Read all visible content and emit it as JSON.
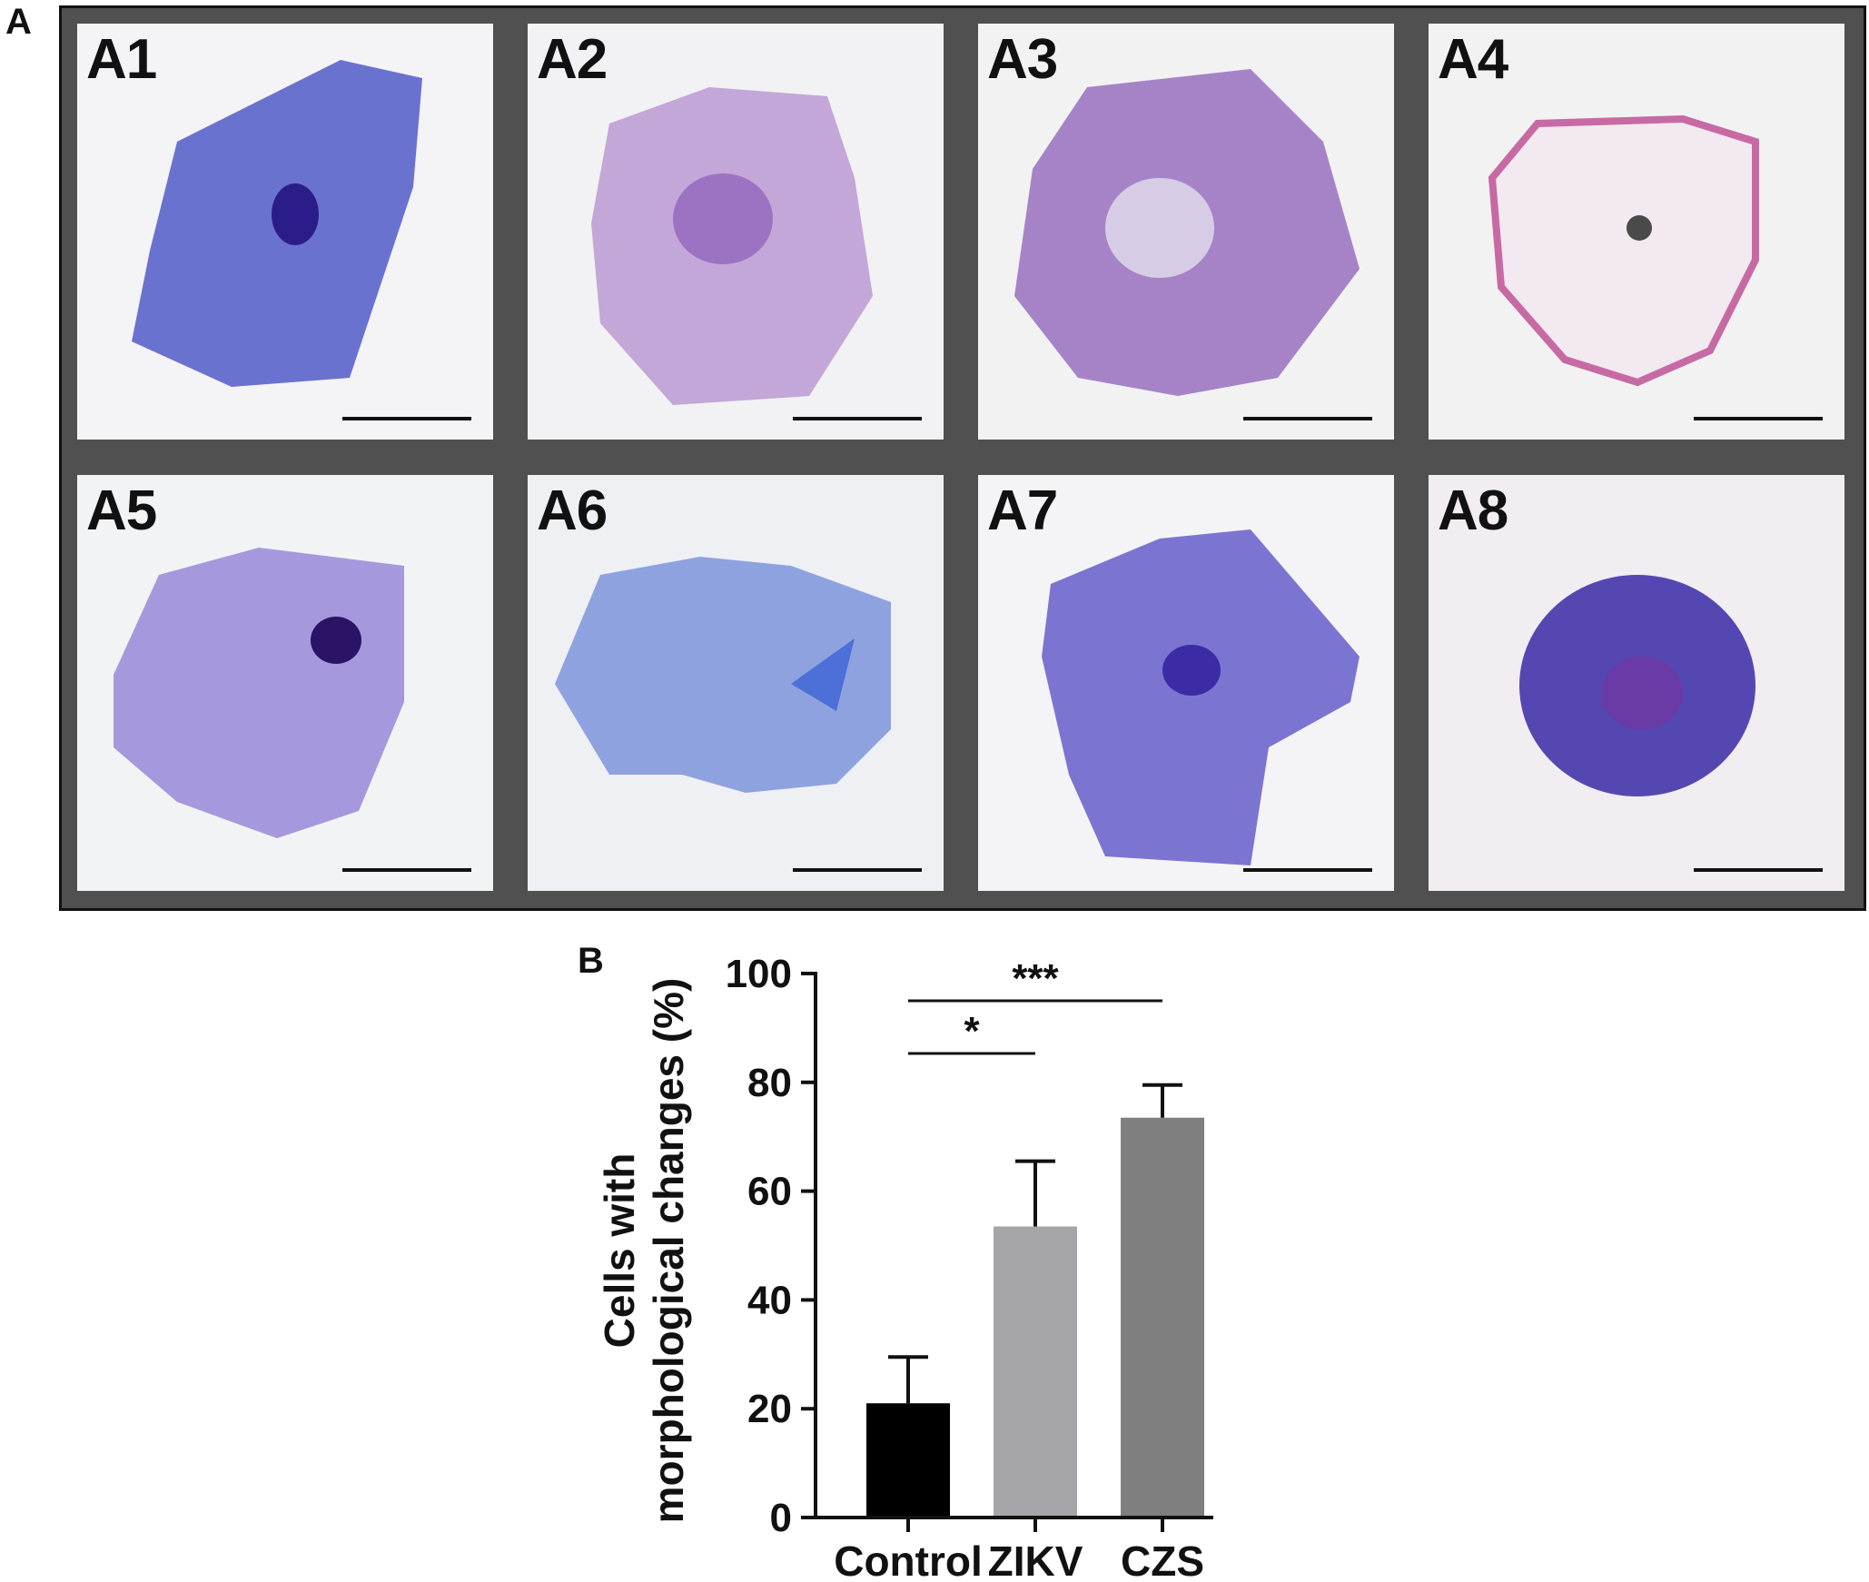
{
  "panel_a": {
    "letter": "A",
    "micrographs": [
      {
        "label": "A1",
        "stain": "#6a72cf",
        "nucleus": "#2a1d8a",
        "background": "#f4f3f6"
      },
      {
        "label": "A2",
        "stain": "#c3a7d8",
        "nucleus": "#8b5dbb",
        "background": "#f2f1f3"
      },
      {
        "label": "A3",
        "stain": "#a683c7",
        "nucleus": "#d7cce6",
        "background": "#f3f2f3"
      },
      {
        "label": "A4",
        "stain": "#f3e9f0",
        "nucleus": "#4a4a4a",
        "background": "#f3f2f3"
      },
      {
        "label": "A5",
        "stain": "#a698dc",
        "nucleus": "#2b1466",
        "background": "#f2f3f5"
      },
      {
        "label": "A6",
        "stain": "#7c94db",
        "nucleus": "#4c6fd8",
        "background": "#eef0f4"
      },
      {
        "label": "A7",
        "stain": "#7c74d1",
        "nucleus": "#3b2ca5",
        "background": "#f4f4f6"
      },
      {
        "label": "A8",
        "stain": "#5547b2",
        "nucleus": "#6a3aa6",
        "background": "#f2edf1"
      }
    ]
  },
  "panel_b": {
    "letter": "B"
  },
  "chart_data": {
    "type": "bar",
    "categories": [
      "Control",
      "ZIKV",
      "CZS"
    ],
    "values": [
      21,
      53.5,
      73.5
    ],
    "error_upper": [
      29.5,
      65.5,
      79.5
    ],
    "colors": [
      "#000000",
      "#a6a6aa",
      "#7f7f7f"
    ],
    "ylabel_line1": "Cells with",
    "ylabel_line2": "morphological changes (%)",
    "ylim": [
      0,
      100
    ],
    "yticks": [
      0,
      20,
      40,
      60,
      80,
      100
    ],
    "significance": [
      {
        "from": "Control",
        "to": "ZIKV",
        "label": "*"
      },
      {
        "from": "Control",
        "to": "CZS",
        "label": "***"
      }
    ]
  }
}
